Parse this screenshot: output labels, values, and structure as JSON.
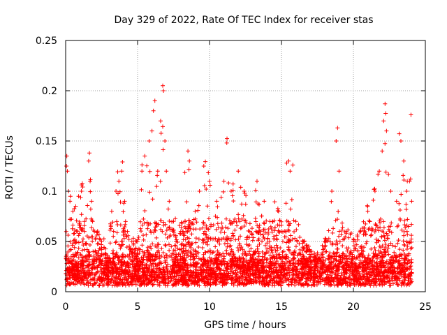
{
  "chart_data": {
    "type": "scatter",
    "title": "Day 329 of 2022, Rate Of TEC Index for receiver stas",
    "xlabel": "GPS time / hours",
    "ylabel": "ROTI / TECUs",
    "xlim": [
      0,
      25
    ],
    "ylim": [
      0,
      0.25
    ],
    "xticks": [
      "0",
      "5",
      "10",
      "15",
      "20",
      "25"
    ],
    "yticks": [
      "0",
      "0.05",
      "0.1",
      "0.15",
      "0.2",
      "0.25"
    ],
    "grid": true,
    "marker": "+",
    "color": "#ff0000",
    "series": [
      {
        "points": [
          [
            0.05,
            0.125
          ],
          [
            0.08,
            0.135
          ],
          [
            0.12,
            0.12
          ],
          [
            0.2,
            0.1
          ],
          [
            0.3,
            0.09
          ],
          [
            0.5,
            0.08
          ],
          [
            0.7,
            0.085
          ],
          [
            0.9,
            0.095
          ],
          [
            1.1,
            0.1
          ],
          [
            1.3,
            0.07
          ],
          [
            1.6,
            0.13
          ],
          [
            1.65,
            0.138
          ],
          [
            1.7,
            0.11
          ],
          [
            1.8,
            0.09
          ],
          [
            2.0,
            0.06
          ],
          [
            2.5,
            0.05
          ],
          [
            2.9,
            0.03
          ],
          [
            3.2,
            0.08
          ],
          [
            3.5,
            0.1
          ],
          [
            3.7,
            0.11
          ],
          [
            3.9,
            0.12
          ],
          [
            4.1,
            0.09
          ],
          [
            4.3,
            0.06
          ],
          [
            4.6,
            0.05
          ],
          [
            5.0,
            0.05
          ],
          [
            5.3,
            0.12
          ],
          [
            5.5,
            0.135
          ],
          [
            5.8,
            0.15
          ],
          [
            6.0,
            0.16
          ],
          [
            6.1,
            0.18
          ],
          [
            6.2,
            0.19
          ],
          [
            6.4,
            0.12
          ],
          [
            6.6,
            0.17
          ],
          [
            6.75,
            0.205
          ],
          [
            6.8,
            0.2
          ],
          [
            6.9,
            0.15
          ],
          [
            7.0,
            0.12
          ],
          [
            7.2,
            0.09
          ],
          [
            7.5,
            0.07
          ],
          [
            8.0,
            0.06
          ],
          [
            8.5,
            0.14
          ],
          [
            8.6,
            0.13
          ],
          [
            9.0,
            0.08
          ],
          [
            9.3,
            0.1
          ],
          [
            9.6,
            0.125
          ],
          [
            10.0,
            0.11
          ],
          [
            10.5,
            0.09
          ],
          [
            11.0,
            0.11
          ],
          [
            11.2,
            0.148
          ],
          [
            11.5,
            0.1
          ],
          [
            12.0,
            0.12
          ],
          [
            12.4,
            0.1
          ],
          [
            12.8,
            0.06
          ],
          [
            13.3,
            0.11
          ],
          [
            13.8,
            0.09
          ],
          [
            14.2,
            0.07
          ],
          [
            14.8,
            0.08
          ],
          [
            15.0,
            0.06
          ],
          [
            15.5,
            0.13
          ],
          [
            15.6,
            0.12
          ],
          [
            16.0,
            0.07
          ],
          [
            16.5,
            0.05
          ],
          [
            17.0,
            0.04
          ],
          [
            17.5,
            0.03
          ],
          [
            18.0,
            0.05
          ],
          [
            18.5,
            0.1
          ],
          [
            18.8,
            0.15
          ],
          [
            18.9,
            0.163
          ],
          [
            19.0,
            0.12
          ],
          [
            19.5,
            0.06
          ],
          [
            20.0,
            0.05
          ],
          [
            20.5,
            0.06
          ],
          [
            21.0,
            0.08
          ],
          [
            21.5,
            0.1
          ],
          [
            21.8,
            0.12
          ],
          [
            22.0,
            0.14
          ],
          [
            22.1,
            0.17
          ],
          [
            22.2,
            0.187
          ],
          [
            22.3,
            0.16
          ],
          [
            22.6,
            0.1
          ],
          [
            23.0,
            0.09
          ],
          [
            23.3,
            0.15
          ],
          [
            23.5,
            0.13
          ],
          [
            23.7,
            0.1
          ],
          [
            23.9,
            0.11
          ],
          [
            24.0,
            0.176
          ],
          [
            24.05,
            0.09
          ]
        ]
      }
    ]
  }
}
